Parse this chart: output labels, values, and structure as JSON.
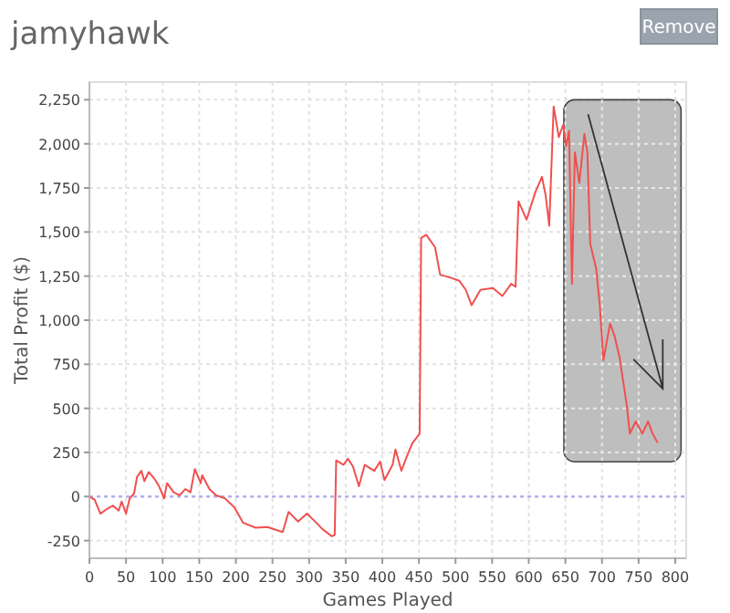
{
  "chart_data": {
    "type": "line",
    "title": "jamyhawk",
    "xlabel": "Games Played",
    "ylabel": "Total Profit ($)",
    "annotations": [
      "Remove"
    ],
    "xlim": [
      0,
      815
    ],
    "ylim": [
      -350,
      2350
    ],
    "xticks": [
      0,
      50,
      100,
      150,
      200,
      250,
      300,
      350,
      400,
      450,
      500,
      550,
      600,
      650,
      700,
      750,
      800
    ],
    "yticks": [
      -250,
      0,
      250,
      500,
      750,
      {
        "value": 1000,
        "label": "1,000"
      },
      {
        "value": 1250,
        "label": "1,250"
      },
      {
        "value": 1500,
        "label": "1,500"
      },
      {
        "value": 1750,
        "label": "1,750"
      },
      {
        "value": 2000,
        "label": "2,000"
      },
      {
        "value": 2250,
        "label": "2,250"
      }
    ],
    "grid": true,
    "marker": "none",
    "line_style": "solid",
    "ref_lines": [
      {
        "axis": "y",
        "value": 0,
        "color": "#aaaaee",
        "line_style": "dotted"
      }
    ],
    "series": [
      {
        "color": "#f05050",
        "x": [
          0,
          7,
          15,
          23,
          32,
          40,
          44,
          50,
          55,
          61,
          65,
          71,
          75,
          81,
          90,
          95,
          102,
          106,
          115,
          123,
          131,
          138,
          144,
          152,
          154,
          164,
          173,
          185,
          198,
          210,
          227,
          243,
          264,
          272,
          285,
          297,
          310,
          318,
          331,
          335,
          337,
          347,
          353,
          360,
          368,
          376,
          389,
          397,
          403,
          414,
          418,
          426,
          434,
          441,
          451,
          453,
          460,
          472,
          479,
          493,
          505,
          514,
          522,
          534,
          551,
          564,
          576,
          582,
          586,
          597,
          609,
          618,
          623,
          628,
          634,
          641,
          647,
          651,
          655,
          659,
          663,
          669,
          676,
          680,
          684,
          692,
          697,
          702,
          711,
          717,
          724,
          734,
          738,
          746,
          755,
          763,
          769,
          776
        ],
        "values": [
          0,
          -17,
          -97,
          -73,
          -52,
          -80,
          -28,
          -97,
          -10,
          17,
          111,
          146,
          87,
          139,
          94,
          59,
          -10,
          76,
          24,
          7,
          42,
          24,
          156,
          76,
          121,
          42,
          7,
          -10,
          -62,
          -149,
          -177,
          -173,
          -201,
          -87,
          -142,
          -97,
          -149,
          -184,
          -225,
          -218,
          205,
          180,
          215,
          170,
          59,
          180,
          146,
          198,
          94,
          180,
          267,
          146,
          232,
          302,
          357,
          1466,
          1484,
          1414,
          1258,
          1241,
          1224,
          1172,
          1085,
          1172,
          1182,
          1137,
          1206,
          1189,
          1674,
          1570,
          1726,
          1813,
          1709,
          1536,
          2212,
          2038,
          2108,
          1986,
          2073,
          1206,
          1952,
          1778,
          2056,
          1952,
          1432,
          1293,
          1085,
          773,
          981,
          912,
          790,
          513,
          357,
          426,
          357,
          426,
          357,
          305
        ]
      }
    ]
  }
}
